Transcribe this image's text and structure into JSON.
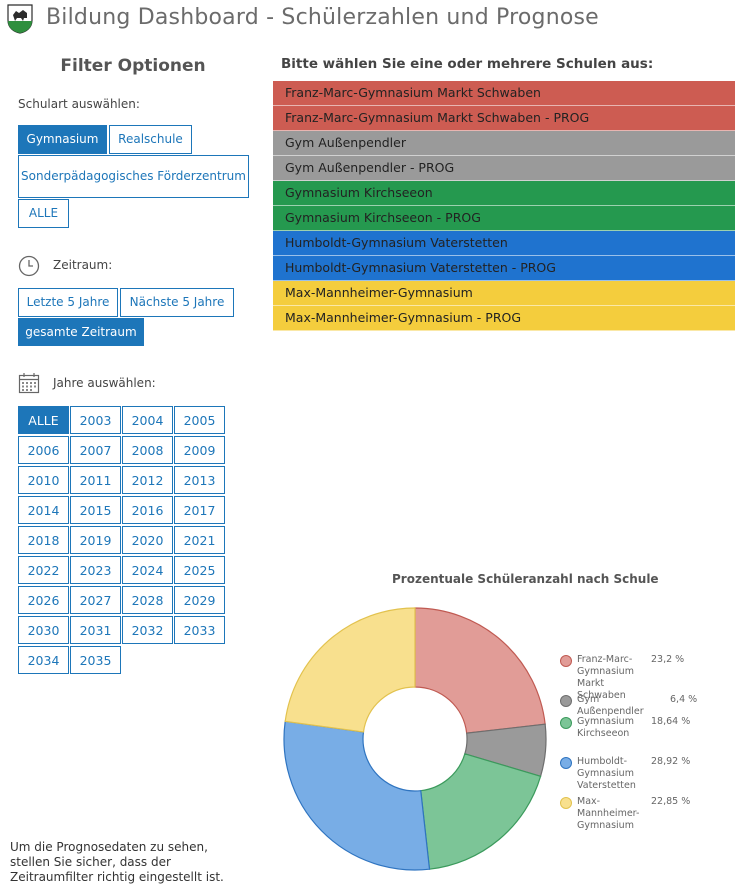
{
  "header": {
    "title": "Bildung Dashboard - Schülerzahlen und Prognose"
  },
  "filters": {
    "title": "Filter Optionen",
    "schulart_label": "Schulart auswählen:",
    "schulart_options": [
      {
        "label": "Gymnasium",
        "active": true
      },
      {
        "label": "Realschule",
        "active": false
      },
      {
        "label": "Sonderpädagogisches Förderzentrum",
        "active": false
      },
      {
        "label": "ALLE",
        "active": false
      }
    ],
    "zeitraum_label": "Zeitraum:",
    "zeitraum_options": [
      {
        "label": "Letzte 5 Jahre",
        "active": false
      },
      {
        "label": "Nächste 5 Jahre",
        "active": false
      },
      {
        "label": "gesamte Zeitraum",
        "active": true
      }
    ],
    "jahre_label": "Jahre auswählen:",
    "jahre_options": [
      "ALLE",
      "2003",
      "2004",
      "2005",
      "2006",
      "2007",
      "2008",
      "2009",
      "2010",
      "2011",
      "2012",
      "2013",
      "2014",
      "2015",
      "2016",
      "2017",
      "2018",
      "2019",
      "2020",
      "2021",
      "2022",
      "2023",
      "2024",
      "2025",
      "2026",
      "2027",
      "2028",
      "2029",
      "2030",
      "2031",
      "2032",
      "2033",
      "2034",
      "2035"
    ],
    "jahre_active": "ALLE"
  },
  "schools": {
    "header": "Bitte wählen Sie eine oder mehrere Schulen aus:",
    "items": [
      {
        "label": "Franz-Marc-Gymnasium Markt Schwaben",
        "color": "#cd5c52"
      },
      {
        "label": "Franz-Marc-Gymnasium Markt Schwaben - PROG",
        "color": "#cd5c52"
      },
      {
        "label": "Gym Außenpendler",
        "color": "#9a9a9a"
      },
      {
        "label": "Gym Außenpendler - PROG",
        "color": "#9a9a9a"
      },
      {
        "label": "Gymnasium Kirchseeon",
        "color": "#25994f"
      },
      {
        "label": "Gymnasium Kirchseeon - PROG",
        "color": "#25994f"
      },
      {
        "label": "Humboldt-Gymnasium Vaterstetten",
        "color": "#1f73cf"
      },
      {
        "label": "Humboldt-Gymnasium Vaterstetten - PROG",
        "color": "#1f73cf"
      },
      {
        "label": "Max-Mannheimer-Gymnasium",
        "color": "#f4cd3d"
      },
      {
        "label": "Max-Mannheimer-Gymnasium - PROG",
        "color": "#f4cd3d"
      }
    ]
  },
  "chart_data": {
    "type": "pie",
    "title": "Prozentuale Schüleranzahl nach Schule",
    "legend_position": "right",
    "slices": [
      {
        "name": "Franz-Marc-Gymnasium Markt Schwaben",
        "value": 23.2,
        "label": "23,2 %",
        "fill": "#e19c97",
        "stroke": "#c05a52"
      },
      {
        "name": "Gym Außenpendler",
        "value": 6.4,
        "label": "6,4 %",
        "fill": "#9a9a9a",
        "stroke": "#6e6e6e"
      },
      {
        "name": "Gymnasium Kirchseeon",
        "value": 18.64,
        "label": "18,64 %",
        "fill": "#7cc597",
        "stroke": "#3b9a5c"
      },
      {
        "name": "Humboldt-Gymnasium Vaterstetten",
        "value": 28.92,
        "label": "28,92 %",
        "fill": "#78ade6",
        "stroke": "#2f74c0"
      },
      {
        "name": "Max-Mannheimer-Gymnasium",
        "value": 22.85,
        "label": "22,85 %",
        "fill": "#f8e08e",
        "stroke": "#e2c24e"
      }
    ]
  },
  "note": "Um die Prognosedaten zu sehen, stellen Sie sicher, dass der Zeitraumfilter richtig eingestellt ist."
}
